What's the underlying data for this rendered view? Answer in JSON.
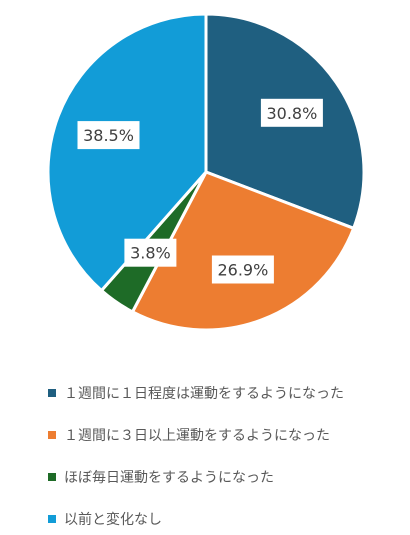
{
  "chart_data": {
    "type": "pie",
    "start_angle": 0,
    "direction": "clockwise",
    "slices": [
      {
        "label": "１週間に１日程度は運動をするようになった",
        "value": 30.8,
        "display": "30.8%",
        "color": "#1F5F80"
      },
      {
        "label": "１週間に３日以上運動をするようになった",
        "value": 26.9,
        "display": "26.9%",
        "color": "#ED7D31"
      },
      {
        "label": "ほぼ毎日運動をするようになった",
        "value": 3.8,
        "display": "3.8%",
        "color": "#1E6B27"
      },
      {
        "label": "以前と変化なし",
        "value": 38.5,
        "display": "38.5%",
        "color": "#129CD7"
      }
    ],
    "legend_position": "bottom",
    "grid": false
  }
}
